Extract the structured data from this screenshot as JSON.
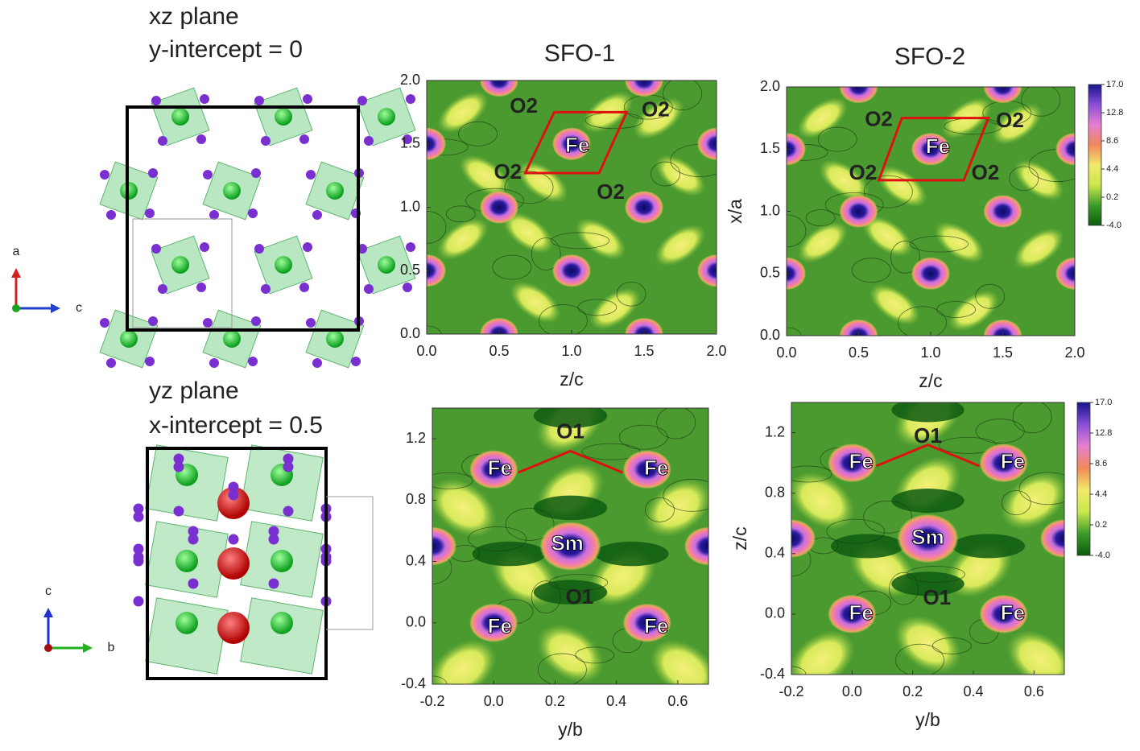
{
  "structures": [
    {
      "plane": "xz plane",
      "intercept": "y-intercept = 0",
      "axes": [
        "a",
        "c"
      ]
    },
    {
      "plane": "yz plane",
      "intercept": "x-intercept = 0.5",
      "axes": [
        "c",
        "b"
      ]
    }
  ],
  "chart_data": [
    {
      "type": "contour",
      "title": "SFO-1",
      "xlabel": "z/c",
      "xlim": [
        0,
        2
      ],
      "ylim": [
        0,
        2
      ],
      "xticks": [
        {
          "value": 0,
          "label": "0.0"
        },
        0.5,
        {
          "value": 1,
          "label": "1.0"
        },
        1.5,
        {
          "value": 2,
          "label": "2.0"
        }
      ],
      "yticks": [
        {
          "value": 0,
          "label": "0.0"
        },
        0.5,
        {
          "value": 1,
          "label": "1.0"
        },
        1.5,
        {
          "value": 2,
          "label": "2.0"
        }
      ],
      "annotations": [
        {
          "text": "O2",
          "x": 0.67,
          "y": 1.79
        },
        {
          "text": "Fe",
          "x": 1.04,
          "y": 1.48
        },
        {
          "text": "O2",
          "x": 1.58,
          "y": 1.76
        },
        {
          "text": "O2",
          "x": 0.56,
          "y": 1.27
        },
        {
          "text": "O2",
          "x": 1.27,
          "y": 1.11
        }
      ]
    },
    {
      "type": "contour",
      "title": "SFO-2",
      "xlabel": "z/c",
      "ylabel": "x/a",
      "xlim": [
        0,
        2
      ],
      "ylim": [
        0,
        2
      ],
      "xticks": [
        {
          "value": 0,
          "label": "0.0"
        },
        0.5,
        {
          "value": 1,
          "label": "1.0"
        },
        1.5,
        {
          "value": 2,
          "label": "2.0"
        }
      ],
      "yticks": [
        {
          "value": 0,
          "label": "0.0"
        },
        0.5,
        {
          "value": 1,
          "label": "1.0"
        },
        1.5,
        {
          "value": 2,
          "label": "2.0"
        }
      ],
      "annotations": [
        {
          "text": "O2",
          "x": 0.64,
          "y": 1.73
        },
        {
          "text": "Fe",
          "x": 1.05,
          "y": 1.51
        },
        {
          "text": "O2",
          "x": 1.55,
          "y": 1.72
        },
        {
          "text": "O2",
          "x": 0.53,
          "y": 1.3
        },
        {
          "text": "O2",
          "x": 1.38,
          "y": 1.3
        }
      ],
      "colorbar": {
        "colors": [
          "#0b5a0b",
          "#3c9c2a",
          "#c9e84c",
          "#f2e86a",
          "#f08a5a",
          "#e77fd0",
          "#8a4fd8",
          "#14148c"
        ],
        "clim": [
          -4,
          17
        ],
        "ticks": [
          {
            "value": 17,
            "label": "17.0"
          },
          12.8,
          8.6,
          4.4,
          0.2,
          {
            "value": -4,
            "label": "-4.0"
          }
        ]
      }
    },
    {
      "type": "contour",
      "xlabel": "y/b",
      "xlim": [
        -0.2,
        0.7
      ],
      "ylim": [
        -0.4,
        1.4
      ],
      "xticks": [
        -0.2,
        {
          "value": 0,
          "label": "0.0"
        },
        0.2,
        0.4,
        0.6
      ],
      "yticks": [
        -0.4,
        {
          "value": 0,
          "label": "0.0"
        },
        0.4,
        0.8,
        1.2
      ],
      "annotations": [
        {
          "text": "O1",
          "x": 0.25,
          "y": 1.24
        },
        {
          "text": "Fe",
          "x": 0.02,
          "y": 1.0
        },
        {
          "text": "Fe",
          "x": 0.53,
          "y": 1.0
        },
        {
          "text": "Sm",
          "x": 0.24,
          "y": 0.51
        },
        {
          "text": "O1",
          "x": 0.28,
          "y": 0.16
        },
        {
          "text": "Fe",
          "x": 0.02,
          "y": -0.03
        },
        {
          "text": "Fe",
          "x": 0.53,
          "y": -0.03
        }
      ]
    },
    {
      "type": "contour",
      "xlabel": "y/b",
      "ylabel": "z/c",
      "xlim": [
        -0.2,
        0.7
      ],
      "ylim": [
        -0.4,
        1.4
      ],
      "xticks": [
        -0.2,
        {
          "value": 0,
          "label": "0.0"
        },
        0.2,
        0.4,
        0.6
      ],
      "yticks": [
        -0.4,
        {
          "value": 0,
          "label": "0.0"
        },
        0.4,
        0.8,
        1.2
      ],
      "annotations": [
        {
          "text": "O1",
          "x": 0.25,
          "y": 1.17
        },
        {
          "text": "Fe",
          "x": 0.03,
          "y": 1.0
        },
        {
          "text": "Fe",
          "x": 0.53,
          "y": 1.0
        },
        {
          "text": "Sm",
          "x": 0.25,
          "y": 0.5
        },
        {
          "text": "O1",
          "x": 0.28,
          "y": 0.1
        },
        {
          "text": "Fe",
          "x": 0.03,
          "y": 0.0
        },
        {
          "text": "Fe",
          "x": 0.53,
          "y": 0.0
        }
      ],
      "colorbar": {
        "colors": [
          "#0b5a0b",
          "#3c9c2a",
          "#c9e84c",
          "#f2e86a",
          "#f08a5a",
          "#e77fd0",
          "#8a4fd8",
          "#14148c"
        ],
        "clim": [
          -4,
          17
        ],
        "ticks": [
          {
            "value": 17,
            "label": "17.0"
          },
          12.8,
          8.6,
          4.4,
          0.2,
          {
            "value": -4,
            "label": "-4.0"
          }
        ]
      }
    }
  ]
}
